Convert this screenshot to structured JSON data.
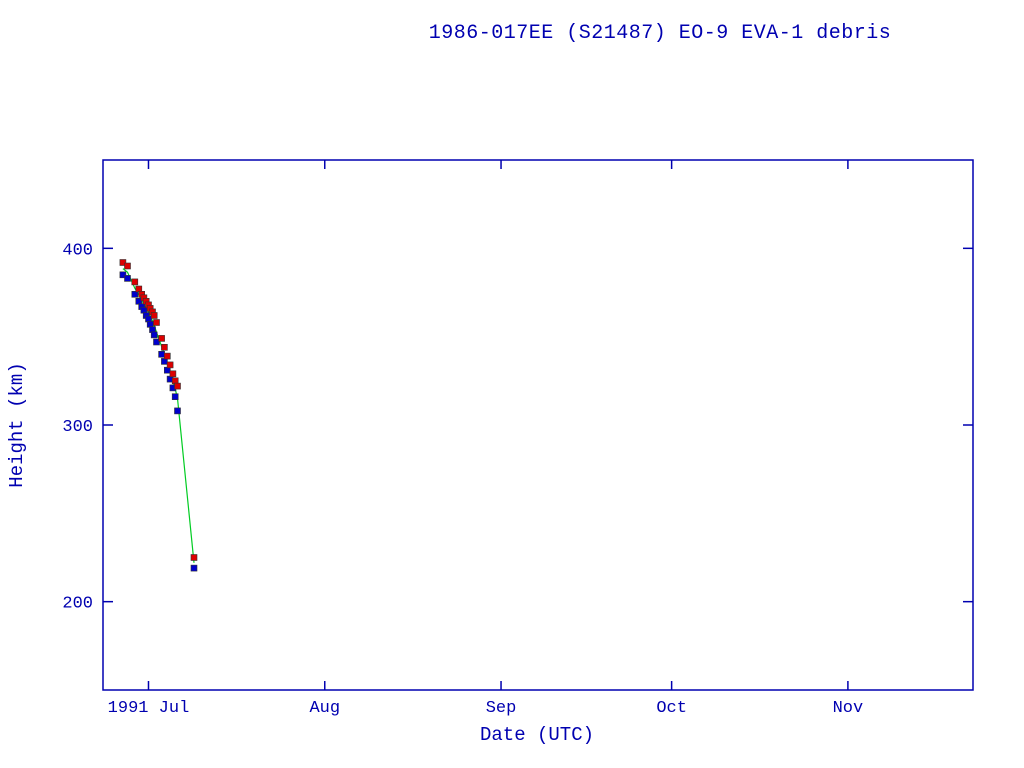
{
  "page": {
    "background": "#ffffff",
    "text_color": "#0000b0"
  },
  "chart_data": {
    "type": "scatter",
    "title": "1986-017EE (S21487) EO-9 EVA-1 debris",
    "xlabel": "Date (UTC)",
    "ylabel": "Height (km)",
    "axis_color": "#0000b0",
    "grid": false,
    "legend": "none",
    "ylim": [
      150,
      450
    ],
    "yticks": [
      {
        "value": 200,
        "label": "200"
      },
      {
        "value": 300,
        "label": "300"
      },
      {
        "value": 400,
        "label": "400"
      }
    ],
    "x_units": "days, day 0 = 1991 Jun 23",
    "xlim_days": [
      0,
      153
    ],
    "xticks": [
      {
        "day": 8,
        "label": "1991 Jul"
      },
      {
        "day": 39,
        "label": "Aug"
      },
      {
        "day": 70,
        "label": "Sep"
      },
      {
        "day": 100,
        "label": "Oct"
      },
      {
        "day": 131,
        "label": "Nov"
      }
    ],
    "series": [
      {
        "name": "mean-height-line",
        "type": "line",
        "color": "#00cc22",
        "points": [
          [
            3.5,
            388.5
          ],
          [
            4.3,
            386.5
          ],
          [
            5.6,
            377.5
          ],
          [
            6.3,
            373.5
          ],
          [
            6.8,
            370.5
          ],
          [
            7.2,
            368.5
          ],
          [
            7.6,
            366.0
          ],
          [
            8.0,
            364.0
          ],
          [
            8.3,
            361.5
          ],
          [
            8.7,
            359.0
          ],
          [
            9.0,
            356.5
          ],
          [
            9.4,
            352.5
          ],
          [
            10.3,
            344.5
          ],
          [
            10.8,
            340.0
          ],
          [
            11.3,
            335.0
          ],
          [
            11.8,
            330.0
          ],
          [
            12.3,
            325.0
          ],
          [
            12.7,
            320.5
          ],
          [
            13.1,
            315.0
          ],
          [
            16.0,
            222.0
          ]
        ]
      },
      {
        "name": "perigee-height",
        "type": "marker",
        "marker": "square",
        "color": "#0000cc",
        "points": [
          [
            3.5,
            385
          ],
          [
            4.3,
            383
          ],
          [
            5.6,
            374
          ],
          [
            6.3,
            370
          ],
          [
            6.8,
            367
          ],
          [
            7.2,
            365
          ],
          [
            7.6,
            362
          ],
          [
            8.0,
            360
          ],
          [
            8.3,
            357
          ],
          [
            8.7,
            354
          ],
          [
            9.0,
            351
          ],
          [
            9.4,
            347
          ],
          [
            10.3,
            340
          ],
          [
            10.8,
            336
          ],
          [
            11.3,
            331
          ],
          [
            11.8,
            326
          ],
          [
            12.3,
            321
          ],
          [
            12.7,
            316
          ],
          [
            13.1,
            308
          ],
          [
            16.0,
            219
          ]
        ]
      },
      {
        "name": "apogee-height",
        "type": "marker",
        "marker": "square",
        "color": "#dd0000",
        "points": [
          [
            3.5,
            392
          ],
          [
            4.3,
            390
          ],
          [
            5.6,
            381
          ],
          [
            6.3,
            377
          ],
          [
            6.8,
            374
          ],
          [
            7.2,
            372
          ],
          [
            7.6,
            370
          ],
          [
            8.0,
            368
          ],
          [
            8.3,
            366
          ],
          [
            8.7,
            364
          ],
          [
            9.0,
            362
          ],
          [
            9.4,
            358
          ],
          [
            10.3,
            349
          ],
          [
            10.8,
            344
          ],
          [
            11.3,
            339
          ],
          [
            11.8,
            334
          ],
          [
            12.3,
            329
          ],
          [
            12.7,
            325
          ],
          [
            13.1,
            322
          ],
          [
            16.0,
            225
          ]
        ]
      }
    ]
  }
}
